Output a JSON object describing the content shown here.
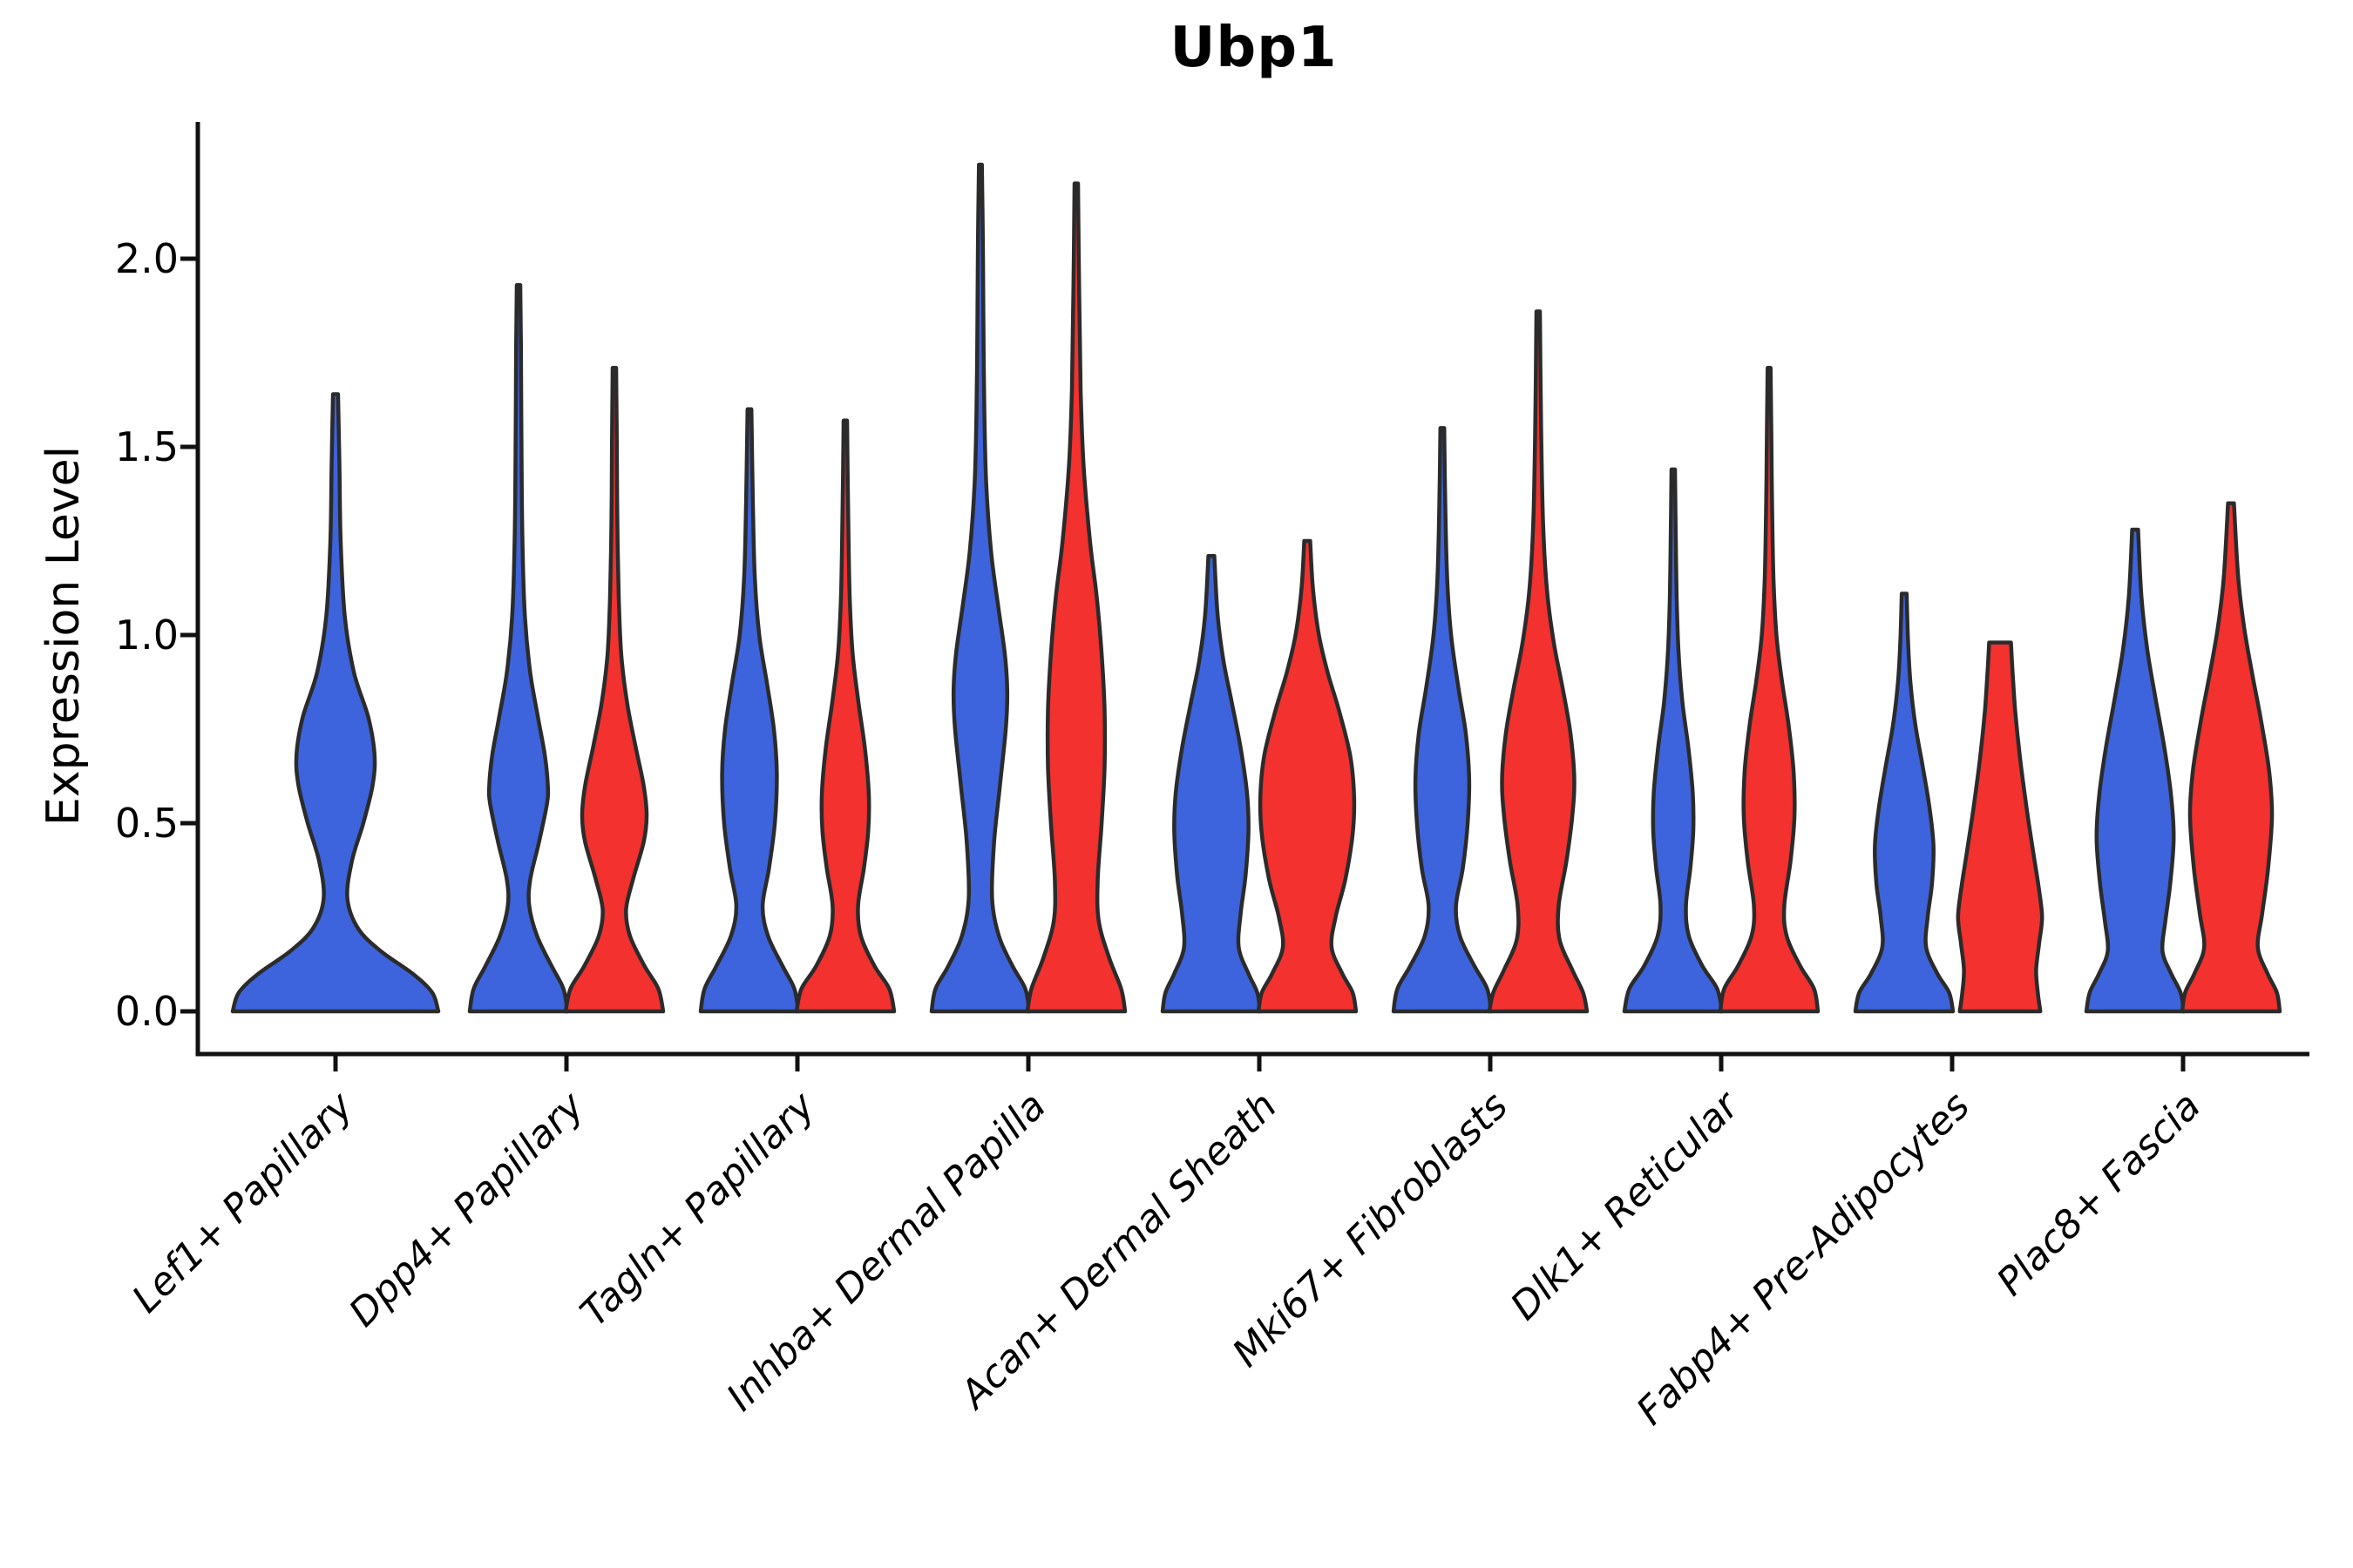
{
  "figure": {
    "title": "Ubp1"
  },
  "chart_data": {
    "type": "violin",
    "title": "Ubp1",
    "xlabel": "",
    "ylabel": "Expression Level",
    "ylim": [
      -0.11,
      2.36
    ],
    "yticks": [
      0.0,
      0.5,
      1.0,
      1.5,
      2.0
    ],
    "grid": false,
    "legend": "none",
    "categories": [
      "Lef1+ Papillary",
      "Dpp4+ Papillary",
      "Tagln+ Papillary",
      "Inhba+ Dermal Papilla",
      "Acan+ Dermal Sheath",
      "Mki67+ Fibroblasts",
      "Dlk1+ Reticular",
      "Fabp4+ Pre-Adipocytes",
      "Plac8+ Fascia"
    ],
    "colors": {
      "blue": "#3D64DD",
      "red": "#F3312E",
      "outline": "#2B2B2B",
      "axis": "#111111"
    },
    "violins": [
      {
        "category_index": 0,
        "category": "Lef1+ Papillary",
        "series": "blue",
        "span": "full",
        "max_expression": 1.64,
        "profile": [
          [
            0,
            1.0
          ],
          [
            0.05,
            0.94
          ],
          [
            0.1,
            0.75
          ],
          [
            0.16,
            0.44
          ],
          [
            0.22,
            0.22
          ],
          [
            0.3,
            0.115
          ],
          [
            0.4,
            0.16
          ],
          [
            0.5,
            0.27
          ],
          [
            0.6,
            0.36
          ],
          [
            0.68,
            0.38
          ],
          [
            0.78,
            0.32
          ],
          [
            0.9,
            0.18
          ],
          [
            1.05,
            0.09
          ],
          [
            1.25,
            0.05
          ],
          [
            1.45,
            0.038
          ],
          [
            1.64,
            0.025
          ]
        ]
      },
      {
        "category_index": 1,
        "category": "Dpp4+ Papillary",
        "series": "blue",
        "span": "split",
        "max_expression": 1.93,
        "profile": [
          [
            0,
            1.0
          ],
          [
            0.06,
            0.92
          ],
          [
            0.12,
            0.68
          ],
          [
            0.2,
            0.38
          ],
          [
            0.28,
            0.22
          ],
          [
            0.35,
            0.24
          ],
          [
            0.45,
            0.42
          ],
          [
            0.55,
            0.58
          ],
          [
            0.6,
            0.6
          ],
          [
            0.68,
            0.54
          ],
          [
            0.78,
            0.4
          ],
          [
            0.9,
            0.24
          ],
          [
            1.05,
            0.13
          ],
          [
            1.25,
            0.08
          ],
          [
            1.5,
            0.06
          ],
          [
            1.75,
            0.05
          ],
          [
            1.93,
            0.035
          ]
        ]
      },
      {
        "category_index": 1,
        "category": "Dpp4+ Papillary",
        "series": "red",
        "span": "split",
        "max_expression": 1.71,
        "profile": [
          [
            0,
            1.0
          ],
          [
            0.06,
            0.9
          ],
          [
            0.12,
            0.62
          ],
          [
            0.2,
            0.32
          ],
          [
            0.27,
            0.24
          ],
          [
            0.35,
            0.38
          ],
          [
            0.45,
            0.6
          ],
          [
            0.52,
            0.66
          ],
          [
            0.6,
            0.6
          ],
          [
            0.7,
            0.44
          ],
          [
            0.82,
            0.26
          ],
          [
            0.95,
            0.14
          ],
          [
            1.1,
            0.09
          ],
          [
            1.3,
            0.06
          ],
          [
            1.5,
            0.05
          ],
          [
            1.71,
            0.035
          ]
        ]
      },
      {
        "category_index": 2,
        "category": "Tagln+ Papillary",
        "series": "blue",
        "span": "split",
        "max_expression": 1.6,
        "profile": [
          [
            0,
            1.0
          ],
          [
            0.06,
            0.92
          ],
          [
            0.12,
            0.68
          ],
          [
            0.2,
            0.38
          ],
          [
            0.28,
            0.27
          ],
          [
            0.38,
            0.4
          ],
          [
            0.5,
            0.52
          ],
          [
            0.63,
            0.56
          ],
          [
            0.75,
            0.5
          ],
          [
            0.87,
            0.36
          ],
          [
            1.0,
            0.2
          ],
          [
            1.15,
            0.11
          ],
          [
            1.35,
            0.07
          ],
          [
            1.6,
            0.04
          ]
        ]
      },
      {
        "category_index": 2,
        "category": "Tagln+ Papillary",
        "series": "red",
        "span": "split",
        "max_expression": 1.57,
        "profile": [
          [
            0,
            1.0
          ],
          [
            0.06,
            0.9
          ],
          [
            0.12,
            0.6
          ],
          [
            0.2,
            0.32
          ],
          [
            0.28,
            0.26
          ],
          [
            0.38,
            0.38
          ],
          [
            0.48,
            0.47
          ],
          [
            0.58,
            0.48
          ],
          [
            0.7,
            0.4
          ],
          [
            0.82,
            0.27
          ],
          [
            0.95,
            0.15
          ],
          [
            1.1,
            0.09
          ],
          [
            1.3,
            0.06
          ],
          [
            1.57,
            0.035
          ]
        ]
      },
      {
        "category_index": 3,
        "category": "Inhba+ Dermal Papilla",
        "series": "blue",
        "span": "split",
        "max_expression": 2.25,
        "profile": [
          [
            0,
            1.0
          ],
          [
            0.06,
            0.92
          ],
          [
            0.12,
            0.66
          ],
          [
            0.2,
            0.38
          ],
          [
            0.3,
            0.24
          ],
          [
            0.45,
            0.28
          ],
          [
            0.6,
            0.4
          ],
          [
            0.75,
            0.52
          ],
          [
            0.85,
            0.55
          ],
          [
            0.95,
            0.5
          ],
          [
            1.08,
            0.36
          ],
          [
            1.22,
            0.22
          ],
          [
            1.4,
            0.12
          ],
          [
            1.6,
            0.08
          ],
          [
            1.85,
            0.06
          ],
          [
            2.05,
            0.05
          ],
          [
            2.25,
            0.03
          ]
        ]
      },
      {
        "category_index": 3,
        "category": "Inhba+ Dermal Papilla",
        "series": "red",
        "span": "split",
        "max_expression": 2.2,
        "profile": [
          [
            0,
            1.0
          ],
          [
            0.06,
            0.92
          ],
          [
            0.14,
            0.68
          ],
          [
            0.24,
            0.46
          ],
          [
            0.35,
            0.44
          ],
          [
            0.5,
            0.52
          ],
          [
            0.65,
            0.58
          ],
          [
            0.8,
            0.58
          ],
          [
            0.95,
            0.52
          ],
          [
            1.1,
            0.42
          ],
          [
            1.25,
            0.28
          ],
          [
            1.45,
            0.15
          ],
          [
            1.65,
            0.09
          ],
          [
            1.9,
            0.06
          ],
          [
            2.2,
            0.035
          ]
        ]
      },
      {
        "category_index": 4,
        "category": "Acan+ Dermal Sheath",
        "series": "blue",
        "span": "split",
        "max_expression": 1.21,
        "profile": [
          [
            0,
            1.0
          ],
          [
            0.05,
            0.94
          ],
          [
            0.1,
            0.76
          ],
          [
            0.17,
            0.56
          ],
          [
            0.26,
            0.6
          ],
          [
            0.36,
            0.7
          ],
          [
            0.48,
            0.76
          ],
          [
            0.58,
            0.73
          ],
          [
            0.7,
            0.6
          ],
          [
            0.82,
            0.42
          ],
          [
            0.93,
            0.25
          ],
          [
            1.05,
            0.13
          ],
          [
            1.21,
            0.06
          ]
        ]
      },
      {
        "category_index": 4,
        "category": "Acan+ Dermal Sheath",
        "series": "red",
        "span": "split",
        "max_expression": 1.25,
        "profile": [
          [
            0,
            1.0
          ],
          [
            0.05,
            0.93
          ],
          [
            0.1,
            0.72
          ],
          [
            0.17,
            0.5
          ],
          [
            0.25,
            0.58
          ],
          [
            0.35,
            0.78
          ],
          [
            0.47,
            0.93
          ],
          [
            0.57,
            0.96
          ],
          [
            0.68,
            0.88
          ],
          [
            0.8,
            0.65
          ],
          [
            0.9,
            0.42
          ],
          [
            1.0,
            0.24
          ],
          [
            1.12,
            0.12
          ],
          [
            1.25,
            0.06
          ]
        ]
      },
      {
        "category_index": 5,
        "category": "Mki67+ Fibroblasts",
        "series": "blue",
        "span": "split",
        "max_expression": 1.55,
        "profile": [
          [
            0,
            1.0
          ],
          [
            0.06,
            0.92
          ],
          [
            0.12,
            0.66
          ],
          [
            0.2,
            0.36
          ],
          [
            0.28,
            0.28
          ],
          [
            0.38,
            0.42
          ],
          [
            0.5,
            0.52
          ],
          [
            0.62,
            0.55
          ],
          [
            0.74,
            0.48
          ],
          [
            0.86,
            0.33
          ],
          [
            1.0,
            0.18
          ],
          [
            1.15,
            0.1
          ],
          [
            1.35,
            0.06
          ],
          [
            1.55,
            0.04
          ]
        ]
      },
      {
        "category_index": 5,
        "category": "Mki67+ Fibroblasts",
        "series": "red",
        "span": "split",
        "max_expression": 1.86,
        "profile": [
          [
            0,
            1.0
          ],
          [
            0.05,
            0.92
          ],
          [
            0.11,
            0.7
          ],
          [
            0.19,
            0.44
          ],
          [
            0.28,
            0.42
          ],
          [
            0.4,
            0.58
          ],
          [
            0.52,
            0.7
          ],
          [
            0.62,
            0.74
          ],
          [
            0.74,
            0.66
          ],
          [
            0.86,
            0.5
          ],
          [
            0.98,
            0.32
          ],
          [
            1.12,
            0.18
          ],
          [
            1.3,
            0.1
          ],
          [
            1.55,
            0.06
          ],
          [
            1.86,
            0.035
          ]
        ]
      },
      {
        "category_index": 6,
        "category": "Dlk1+ Reticular",
        "series": "blue",
        "span": "split",
        "max_expression": 1.44,
        "profile": [
          [
            0,
            1.0
          ],
          [
            0.06,
            0.9
          ],
          [
            0.12,
            0.6
          ],
          [
            0.2,
            0.32
          ],
          [
            0.28,
            0.26
          ],
          [
            0.38,
            0.35
          ],
          [
            0.48,
            0.41
          ],
          [
            0.58,
            0.4
          ],
          [
            0.7,
            0.31
          ],
          [
            0.82,
            0.19
          ],
          [
            0.95,
            0.11
          ],
          [
            1.1,
            0.07
          ],
          [
            1.28,
            0.05
          ],
          [
            1.44,
            0.035
          ]
        ]
      },
      {
        "category_index": 6,
        "category": "Dlk1+ Reticular",
        "series": "red",
        "span": "split",
        "max_expression": 1.71,
        "profile": [
          [
            0,
            1.0
          ],
          [
            0.06,
            0.92
          ],
          [
            0.12,
            0.64
          ],
          [
            0.2,
            0.36
          ],
          [
            0.28,
            0.31
          ],
          [
            0.4,
            0.44
          ],
          [
            0.52,
            0.52
          ],
          [
            0.64,
            0.5
          ],
          [
            0.76,
            0.4
          ],
          [
            0.88,
            0.26
          ],
          [
            1.0,
            0.15
          ],
          [
            1.15,
            0.09
          ],
          [
            1.35,
            0.06
          ],
          [
            1.55,
            0.045
          ],
          [
            1.71,
            0.03
          ]
        ]
      },
      {
        "category_index": 7,
        "category": "Fabp4+ Pre-Adipocytes",
        "series": "blue",
        "span": "split",
        "max_expression": 1.11,
        "profile": [
          [
            0,
            1.0
          ],
          [
            0.05,
            0.92
          ],
          [
            0.1,
            0.68
          ],
          [
            0.17,
            0.45
          ],
          [
            0.25,
            0.48
          ],
          [
            0.34,
            0.57
          ],
          [
            0.44,
            0.6
          ],
          [
            0.54,
            0.52
          ],
          [
            0.65,
            0.38
          ],
          [
            0.76,
            0.23
          ],
          [
            0.87,
            0.13
          ],
          [
            0.98,
            0.08
          ],
          [
            1.11,
            0.05
          ]
        ]
      },
      {
        "category_index": 7,
        "category": "Fabp4+ Pre-Adipocytes",
        "series": "red",
        "span": "split",
        "max_expression": 0.98,
        "flat_top": true,
        "narrow": 0.86,
        "profile": [
          [
            0,
            0.96
          ],
          [
            0.05,
            0.9
          ],
          [
            0.11,
            0.86
          ],
          [
            0.18,
            0.93
          ],
          [
            0.25,
            1.0
          ],
          [
            0.33,
            0.92
          ],
          [
            0.43,
            0.78
          ],
          [
            0.55,
            0.62
          ],
          [
            0.68,
            0.47
          ],
          [
            0.8,
            0.36
          ],
          [
            0.9,
            0.3
          ],
          [
            0.98,
            0.26
          ]
        ]
      },
      {
        "category_index": 8,
        "category": "Plac8+ Fascia",
        "series": "blue",
        "span": "split",
        "max_expression": 1.28,
        "profile": [
          [
            0,
            1.0
          ],
          [
            0.05,
            0.93
          ],
          [
            0.1,
            0.74
          ],
          [
            0.16,
            0.56
          ],
          [
            0.24,
            0.62
          ],
          [
            0.34,
            0.72
          ],
          [
            0.46,
            0.79
          ],
          [
            0.57,
            0.74
          ],
          [
            0.7,
            0.6
          ],
          [
            0.83,
            0.42
          ],
          [
            0.96,
            0.25
          ],
          [
            1.1,
            0.13
          ],
          [
            1.28,
            0.06
          ]
        ]
      },
      {
        "category_index": 8,
        "category": "Plac8+ Fascia",
        "series": "red",
        "span": "split",
        "max_expression": 1.35,
        "profile": [
          [
            0,
            1.0
          ],
          [
            0.05,
            0.94
          ],
          [
            0.1,
            0.75
          ],
          [
            0.17,
            0.55
          ],
          [
            0.26,
            0.64
          ],
          [
            0.38,
            0.76
          ],
          [
            0.52,
            0.84
          ],
          [
            0.64,
            0.78
          ],
          [
            0.77,
            0.62
          ],
          [
            0.9,
            0.43
          ],
          [
            1.02,
            0.27
          ],
          [
            1.15,
            0.15
          ],
          [
            1.35,
            0.06
          ]
        ]
      }
    ]
  }
}
